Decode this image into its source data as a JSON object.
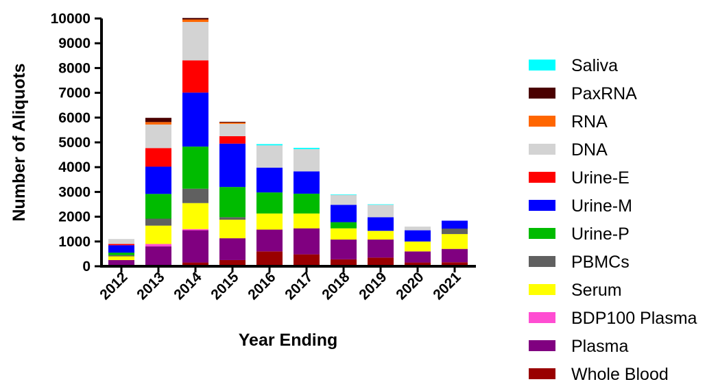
{
  "chart_data": {
    "type": "bar",
    "stacked": true,
    "xlabel": "Year Ending",
    "ylabel": "Number of Aliquots",
    "ylim": [
      0,
      10000
    ],
    "yticks": [
      0,
      1000,
      2000,
      3000,
      4000,
      5000,
      6000,
      7000,
      8000,
      9000,
      10000
    ],
    "categories": [
      "2012",
      "2013",
      "2014",
      "2015",
      "2016",
      "2017",
      "2018",
      "2019",
      "2020",
      "2021"
    ],
    "legend_position": "right",
    "grid": false,
    "series": [
      {
        "name": "Whole Blood",
        "color": "#990000",
        "values": [
          50,
          50,
          150,
          250,
          600,
          480,
          280,
          350,
          150,
          160
        ]
      },
      {
        "name": "Plasma",
        "color": "#800080",
        "values": [
          200,
          750,
          1300,
          880,
          880,
          1050,
          800,
          730,
          450,
          540
        ]
      },
      {
        "name": "BDP100 Plasma",
        "color": "#ff4dd2",
        "values": [
          0,
          100,
          50,
          0,
          0,
          0,
          0,
          0,
          0,
          0
        ]
      },
      {
        "name": "Serum",
        "color": "#ffff00",
        "values": [
          150,
          740,
          1050,
          750,
          650,
          600,
          450,
          350,
          400,
          600
        ]
      },
      {
        "name": "PBMCs",
        "color": "#606060",
        "values": [
          50,
          280,
          580,
          100,
          0,
          0,
          0,
          0,
          0,
          220
        ]
      },
      {
        "name": "Urine-P",
        "color": "#00bb00",
        "values": [
          100,
          1000,
          1700,
          1220,
          850,
          800,
          250,
          0,
          0,
          0
        ]
      },
      {
        "name": "Urine-M",
        "color": "#0000ff",
        "values": [
          300,
          1100,
          2180,
          1750,
          1000,
          900,
          700,
          550,
          450,
          320
        ]
      },
      {
        "name": "Urine-E",
        "color": "#ff0000",
        "values": [
          50,
          750,
          1300,
          300,
          0,
          0,
          0,
          0,
          0,
          0
        ]
      },
      {
        "name": "DNA",
        "color": "#d3d3d3",
        "values": [
          200,
          950,
          1550,
          500,
          900,
          900,
          400,
          500,
          150,
          0
        ]
      },
      {
        "name": "RNA",
        "color": "#ff6600",
        "values": [
          0,
          100,
          100,
          50,
          0,
          0,
          0,
          0,
          0,
          0
        ]
      },
      {
        "name": "PaxRNA",
        "color": "#4a0000",
        "values": [
          0,
          170,
          60,
          30,
          0,
          0,
          0,
          0,
          0,
          0
        ]
      },
      {
        "name": "Saliva",
        "color": "#00ffff",
        "values": [
          0,
          0,
          0,
          0,
          50,
          50,
          20,
          20,
          0,
          0
        ]
      }
    ]
  }
}
